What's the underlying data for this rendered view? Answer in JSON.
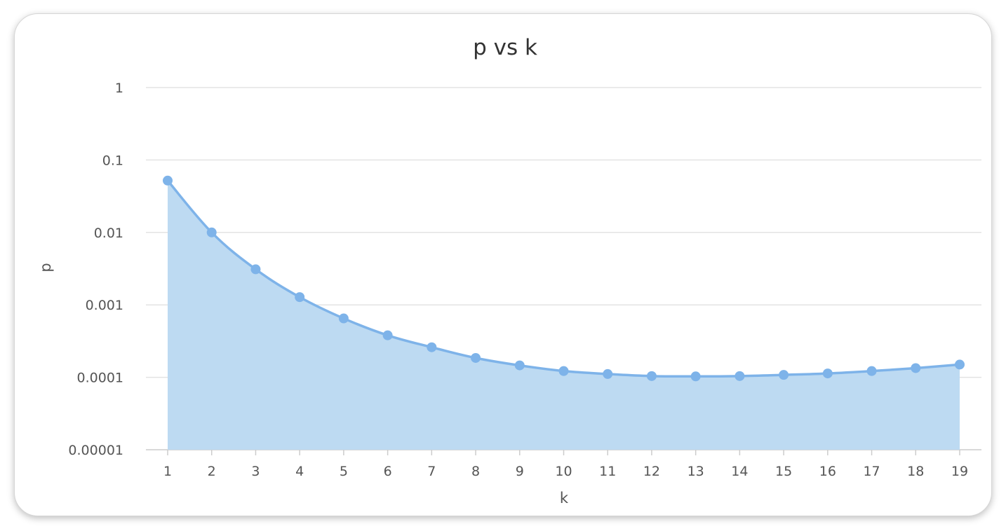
{
  "chart_data": {
    "type": "area",
    "title": "p vs k",
    "xlabel": "k",
    "ylabel": "p",
    "yscale": "log",
    "ylim": [
      1e-05,
      1
    ],
    "ytick_labels": [
      "1",
      "0.1",
      "0.01",
      "0.001",
      "0.0001",
      "0.00001"
    ],
    "ytick_values": [
      1,
      0.1,
      0.01,
      0.001,
      0.0001,
      1e-05
    ],
    "x": [
      1,
      2,
      3,
      4,
      5,
      6,
      7,
      8,
      9,
      10,
      11,
      12,
      13,
      14,
      15,
      16,
      17,
      18,
      19
    ],
    "series": [
      {
        "values": [
          0.052,
          0.01,
          0.0031,
          0.00128,
          0.00065,
          0.00038,
          0.00026,
          0.000185,
          0.000146,
          0.000122,
          0.000111,
          0.000104,
          0.000103,
          0.000104,
          0.000108,
          0.000113,
          0.000122,
          0.000134,
          0.00015
        ]
      }
    ],
    "grid": true,
    "legend": "none",
    "colors": {
      "line": "#7eb3e9",
      "fill": "#bddaf2",
      "marker": "#7eb3e9"
    }
  }
}
